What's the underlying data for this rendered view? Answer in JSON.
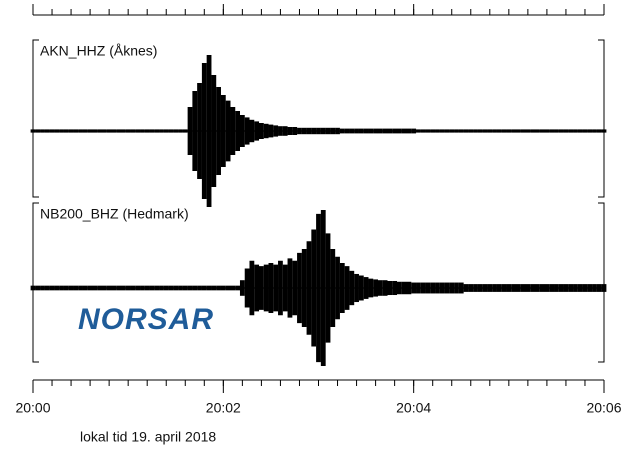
{
  "chart_data": {
    "type": "seismogram",
    "xlabel": "lokal tid 19. april 2018",
    "logo": "NORSAR",
    "xlim": [
      0,
      6
    ],
    "xticks": [
      {
        "value": 0,
        "label": "20:00"
      },
      {
        "value": 2,
        "label": "20:02"
      },
      {
        "value": 4,
        "label": "20:04"
      },
      {
        "value": 6,
        "label": "20:06"
      }
    ],
    "xminor": 0.2,
    "ylim": [
      -1,
      1
    ],
    "color": "#000000",
    "x": [
      0,
      0.05,
      0.1,
      0.15,
      0.2,
      0.25,
      0.3,
      0.35,
      0.4,
      0.45,
      0.5,
      0.55,
      0.6,
      0.65,
      0.7,
      0.75,
      0.8,
      0.85,
      0.9,
      0.95,
      1,
      1.05,
      1.1,
      1.15,
      1.2,
      1.25,
      1.3,
      1.35,
      1.4,
      1.45,
      1.5,
      1.55,
      1.6,
      1.65,
      1.7,
      1.75,
      1.8,
      1.85,
      1.9,
      1.95,
      2,
      2.05,
      2.1,
      2.15,
      2.2,
      2.25,
      2.3,
      2.35,
      2.4,
      2.45,
      2.5,
      2.55,
      2.6,
      2.65,
      2.7,
      2.75,
      2.8,
      2.85,
      2.9,
      2.95,
      3,
      3.05,
      3.1,
      3.15,
      3.2,
      3.25,
      3.3,
      3.35,
      3.4,
      3.45,
      3.5,
      3.55,
      3.6,
      3.65,
      3.7,
      3.75,
      3.8,
      3.85,
      3.9,
      3.95,
      4,
      4.05,
      4.1,
      4.15,
      4.2,
      4.25,
      4.3,
      4.35,
      4.4,
      4.45,
      4.5,
      4.55,
      4.6,
      4.65,
      4.7,
      4.75,
      4.8,
      4.85,
      4.9,
      4.95,
      5,
      5.05,
      5.1,
      5.15,
      5.2,
      5.25,
      5.3,
      5.35,
      5.4,
      5.45,
      5.5,
      5.55,
      5.6,
      5.65,
      5.7,
      5.75,
      5.8,
      5.85,
      5.9,
      5.95,
      6
    ],
    "series": [
      {
        "name": "AKN_HHZ (Åknes)",
        "values": [
          0.02,
          0.02,
          0.02,
          0.02,
          0.02,
          0.02,
          0.02,
          0.02,
          0.02,
          0.02,
          0.02,
          0.02,
          0.02,
          0.02,
          0.02,
          0.02,
          0.02,
          0.02,
          0.02,
          0.02,
          0.02,
          0.02,
          0.02,
          0.02,
          0.02,
          0.02,
          0.02,
          0.02,
          0.02,
          0.02,
          0.02,
          0.02,
          0.02,
          0.3,
          0.5,
          0.6,
          0.85,
          0.95,
          0.7,
          0.55,
          0.45,
          0.38,
          0.3,
          0.25,
          0.2,
          0.17,
          0.14,
          0.12,
          0.1,
          0.09,
          0.08,
          0.07,
          0.06,
          0.06,
          0.05,
          0.05,
          0.04,
          0.04,
          0.04,
          0.04,
          0.04,
          0.04,
          0.04,
          0.04,
          0.04,
          0.03,
          0.03,
          0.03,
          0.03,
          0.03,
          0.03,
          0.03,
          0.03,
          0.03,
          0.03,
          0.03,
          0.03,
          0.03,
          0.03,
          0.03,
          0.03,
          0.02,
          0.02,
          0.02,
          0.02,
          0.02,
          0.02,
          0.02,
          0.02,
          0.02,
          0.02,
          0.02,
          0.02,
          0.02,
          0.02,
          0.02,
          0.02,
          0.02,
          0.02,
          0.02,
          0.02,
          0.02,
          0.02,
          0.02,
          0.02,
          0.02,
          0.02,
          0.02,
          0.02,
          0.02,
          0.02,
          0.02,
          0.02,
          0.02,
          0.02,
          0.02,
          0.02,
          0.02,
          0.02,
          0.02,
          0.02
        ]
      },
      {
        "name": "NB200_BHZ (Hedmark)",
        "values": [
          0.03,
          0.03,
          0.03,
          0.03,
          0.03,
          0.03,
          0.03,
          0.03,
          0.03,
          0.03,
          0.03,
          0.03,
          0.03,
          0.03,
          0.03,
          0.03,
          0.03,
          0.03,
          0.03,
          0.03,
          0.03,
          0.03,
          0.03,
          0.03,
          0.03,
          0.03,
          0.03,
          0.03,
          0.03,
          0.03,
          0.03,
          0.03,
          0.03,
          0.03,
          0.03,
          0.03,
          0.03,
          0.03,
          0.03,
          0.03,
          0.03,
          0.03,
          0.03,
          0.03,
          0.1,
          0.25,
          0.35,
          0.3,
          0.28,
          0.3,
          0.32,
          0.3,
          0.35,
          0.3,
          0.38,
          0.35,
          0.45,
          0.5,
          0.6,
          0.75,
          0.95,
          1.0,
          0.7,
          0.5,
          0.4,
          0.32,
          0.28,
          0.22,
          0.18,
          0.16,
          0.14,
          0.12,
          0.11,
          0.1,
          0.1,
          0.09,
          0.09,
          0.08,
          0.08,
          0.08,
          0.07,
          0.07,
          0.07,
          0.07,
          0.07,
          0.07,
          0.07,
          0.07,
          0.07,
          0.07,
          0.07,
          0.05,
          0.05,
          0.05,
          0.05,
          0.05,
          0.05,
          0.05,
          0.05,
          0.05,
          0.05,
          0.05,
          0.05,
          0.05,
          0.05,
          0.05,
          0.05,
          0.05,
          0.05,
          0.05,
          0.05,
          0.05,
          0.05,
          0.05,
          0.05,
          0.05,
          0.05,
          0.05,
          0.05,
          0.05,
          0.05
        ]
      }
    ]
  }
}
